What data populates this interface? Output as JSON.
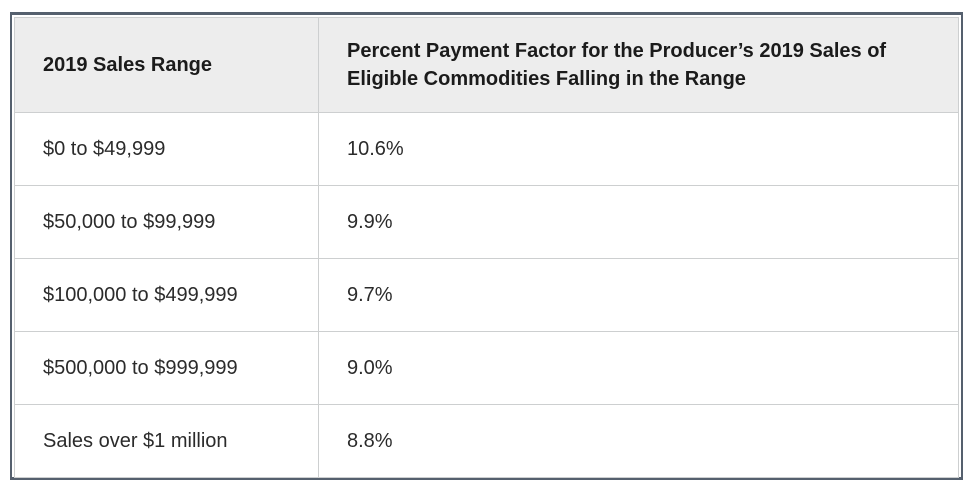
{
  "page": {
    "background_color": "#ffffff"
  },
  "table": {
    "outer_border_color": "#55606e",
    "grid_border_color": "#cdcfd0",
    "header_background_color": "#ededed",
    "header_text_color": "#1b1b1b",
    "body_text_color": "#2b2b2b",
    "header": {
      "range_column_label": "2019 Sales Range",
      "factor_column_label": "Percent Payment Factor for the Producer’s 2019 Sales of Eligible Commodities Falling in the Range"
    },
    "rows": [
      {
        "range": "$0 to $49,999",
        "factor": "10.6%"
      },
      {
        "range": "$50,000 to $99,999",
        "factor": "9.9%"
      },
      {
        "range": "$100,000 to $499,999",
        "factor": "9.7%"
      },
      {
        "range": "$500,000 to $999,999",
        "factor": "9.0%"
      },
      {
        "range": "Sales over $1 million",
        "factor": "8.8%"
      }
    ]
  }
}
